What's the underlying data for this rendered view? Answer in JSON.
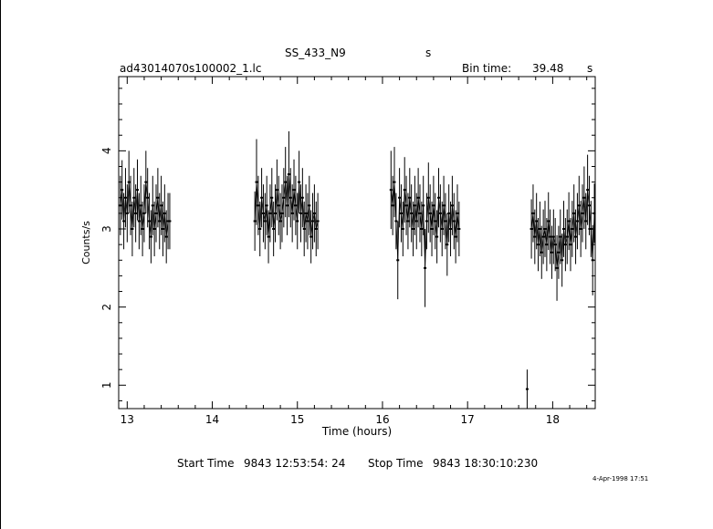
{
  "header": {
    "object": "SS_433_N9",
    "object_suffix": "s",
    "file": "ad43014070s100002_1.lc",
    "bin_label": "Bin time:",
    "bin_value": "39.48",
    "bin_unit": "s"
  },
  "footer": {
    "start_label": "Start Time",
    "start_value": "9843 12:53:54: 24",
    "stop_label": "Stop Time",
    "stop_value": "9843 18:30:10:230",
    "date_stamp": "4-Apr-1998 17:51"
  },
  "chart_data": {
    "type": "scatter",
    "xlabel": "Time (hours)",
    "ylabel": "Counts/s",
    "xlim": [
      12.9,
      18.5
    ],
    "ylim": [
      0.7,
      4.95
    ],
    "xticks": [
      13,
      14,
      15,
      16,
      17,
      18
    ],
    "xtick_labels": [
      "13",
      "14",
      "15",
      "16",
      "17",
      "18"
    ],
    "yticks": [
      1,
      2,
      3,
      4
    ],
    "ytick_labels": [
      "1",
      "2",
      "3",
      "4"
    ],
    "grid": false,
    "series": [
      {
        "segments": [
          {
            "x": [
              12.92,
              12.94,
              12.96,
              12.98,
              13.0,
              13.02,
              13.04,
              13.06,
              13.08,
              13.1,
              13.12,
              13.14,
              13.16,
              13.18,
              13.2,
              13.22,
              13.24,
              13.26,
              13.28,
              13.3,
              13.32,
              13.34,
              13.36,
              13.38,
              13.4,
              13.42,
              13.44,
              13.46,
              13.48,
              13.5
            ],
            "y": [
              3.3,
              3.5,
              3.1,
              3.4,
              3.2,
              3.6,
              3.3,
              3.0,
              3.4,
              3.2,
              3.5,
              3.1,
              3.3,
              3.0,
              3.2,
              3.6,
              3.4,
              3.1,
              2.9,
              3.3,
              3.0,
              3.2,
              3.4,
              3.1,
              3.3,
              3.0,
              3.2,
              2.9,
              3.1,
              3.1
            ],
            "err": [
              0.38,
              0.38,
              0.36,
              0.38,
              0.37,
              0.4,
              0.38,
              0.35,
              0.38,
              0.37,
              0.39,
              0.36,
              0.38,
              0.35,
              0.37,
              0.4,
              0.38,
              0.36,
              0.34,
              0.38,
              0.35,
              0.37,
              0.38,
              0.36,
              0.38,
              0.35,
              0.37,
              0.34,
              0.36,
              0.36
            ]
          },
          {
            "x": [
              14.5,
              14.52,
              14.54,
              14.56,
              14.58,
              14.6,
              14.62,
              14.64,
              14.66,
              14.68,
              14.7,
              14.72,
              14.74,
              14.76,
              14.78,
              14.8,
              14.82,
              14.84,
              14.86,
              14.88,
              14.9,
              14.92,
              14.94,
              14.96,
              14.98,
              15.0,
              15.02,
              15.04,
              15.06,
              15.08,
              15.1,
              15.12,
              15.14,
              15.16,
              15.18,
              15.2,
              15.22,
              15.24
            ],
            "y": [
              3.1,
              3.6,
              3.3,
              3.0,
              3.4,
              3.2,
              3.1,
              3.3,
              2.9,
              3.2,
              3.4,
              3.0,
              3.2,
              3.5,
              3.3,
              3.1,
              3.2,
              3.4,
              3.6,
              3.3,
              3.7,
              3.4,
              3.2,
              3.5,
              3.3,
              3.1,
              3.6,
              3.2,
              3.4,
              3.0,
              3.2,
              3.1,
              3.3,
              2.9,
              3.1,
              3.2,
              3.0,
              3.1
            ],
            "err": [
              0.38,
              0.55,
              0.38,
              0.35,
              0.38,
              0.37,
              0.36,
              0.38,
              0.34,
              0.37,
              0.38,
              0.35,
              0.37,
              0.39,
              0.38,
              0.36,
              0.37,
              0.38,
              0.45,
              0.38,
              0.55,
              0.38,
              0.37,
              0.39,
              0.38,
              0.36,
              0.4,
              0.37,
              0.38,
              0.35,
              0.37,
              0.36,
              0.38,
              0.34,
              0.36,
              0.37,
              0.35,
              0.36
            ]
          },
          {
            "x": [
              16.1,
              16.12,
              16.14,
              16.16,
              16.18,
              16.2,
              16.22,
              16.24,
              16.26,
              16.28,
              16.3,
              16.32,
              16.34,
              16.36,
              16.38,
              16.4,
              16.42,
              16.44,
              16.46,
              16.48,
              16.5,
              16.52,
              16.54,
              16.56,
              16.58,
              16.6,
              16.62,
              16.64,
              16.66,
              16.68,
              16.7,
              16.72,
              16.74,
              16.76,
              16.78,
              16.8,
              16.82,
              16.84,
              16.86,
              16.88,
              16.9
            ],
            "y": [
              3.5,
              3.3,
              3.6,
              3.1,
              2.6,
              3.4,
              3.2,
              3.0,
              3.5,
              3.3,
              3.1,
              3.4,
              3.2,
              3.0,
              3.3,
              3.1,
              3.4,
              3.2,
              3.0,
              3.3,
              2.5,
              3.1,
              3.4,
              3.2,
              3.0,
              3.3,
              3.1,
              2.9,
              3.4,
              3.2,
              3.0,
              3.3,
              3.1,
              2.8,
              3.2,
              3.0,
              3.3,
              3.1,
              2.9,
              3.2,
              3.0
            ],
            "err": [
              0.5,
              0.38,
              0.45,
              0.36,
              0.5,
              0.38,
              0.37,
              0.35,
              0.42,
              0.38,
              0.36,
              0.38,
              0.37,
              0.35,
              0.38,
              0.36,
              0.38,
              0.37,
              0.35,
              0.38,
              0.5,
              0.36,
              0.45,
              0.37,
              0.35,
              0.38,
              0.36,
              0.34,
              0.38,
              0.37,
              0.35,
              0.38,
              0.36,
              0.4,
              0.37,
              0.35,
              0.38,
              0.36,
              0.34,
              0.37,
              0.35
            ]
          },
          {
            "x": [
              17.7
            ],
            "y": [
              0.95
            ],
            "err": [
              0.25
            ]
          },
          {
            "x": [
              17.75,
              17.77,
              17.79,
              17.81,
              17.83,
              17.85,
              17.87,
              17.89,
              17.91,
              17.93,
              17.95,
              17.97,
              17.99,
              18.01,
              18.03,
              18.05,
              18.07,
              18.09,
              18.11,
              18.13,
              18.15,
              18.17,
              18.19,
              18.21,
              18.23,
              18.25,
              18.27,
              18.29,
              18.31,
              18.33,
              18.35,
              18.37,
              18.39,
              18.41,
              18.43,
              18.45,
              18.47,
              18.49
            ],
            "y": [
              3.0,
              3.2,
              2.9,
              3.1,
              2.8,
              3.0,
              2.7,
              2.9,
              3.0,
              2.8,
              3.1,
              2.9,
              2.7,
              2.9,
              2.8,
              2.5,
              2.7,
              2.9,
              2.6,
              3.0,
              2.8,
              2.9,
              3.1,
              2.8,
              3.0,
              3.2,
              2.9,
              3.1,
              3.3,
              3.0,
              3.2,
              3.4,
              3.1,
              3.5,
              3.3,
              3.0,
              2.6,
              3.2
            ],
            "err": [
              0.38,
              0.37,
              0.35,
              0.36,
              0.34,
              0.35,
              0.34,
              0.35,
              0.36,
              0.34,
              0.37,
              0.35,
              0.34,
              0.35,
              0.34,
              0.42,
              0.34,
              0.35,
              0.34,
              0.36,
              0.34,
              0.35,
              0.37,
              0.34,
              0.36,
              0.37,
              0.35,
              0.36,
              0.38,
              0.36,
              0.37,
              0.4,
              0.36,
              0.45,
              0.38,
              0.36,
              0.45,
              0.38
            ]
          }
        ]
      }
    ]
  }
}
